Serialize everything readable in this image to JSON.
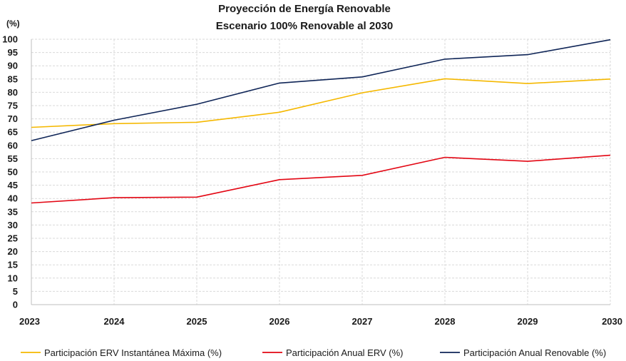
{
  "chart_data": {
    "type": "line",
    "title": "Proyección de Energía Renovable",
    "subtitle": "Escenario 100% Renovable al 2030",
    "ylabel": "(%)",
    "xlabel": "",
    "ylim": [
      0,
      100
    ],
    "yticks": [
      0,
      5,
      10,
      15,
      20,
      25,
      30,
      35,
      40,
      45,
      50,
      55,
      60,
      65,
      70,
      75,
      80,
      85,
      90,
      95,
      100
    ],
    "categories": [
      "2023",
      "2024",
      "2025",
      "2026",
      "2027",
      "2028",
      "2029",
      "2030"
    ],
    "grid": true,
    "legend_position": "bottom",
    "series": [
      {
        "name": "Participación ERV Instantánea Máxima (%)",
        "color": "#f5b800",
        "values": [
          66.8,
          68.2,
          68.7,
          72.5,
          79.8,
          85.1,
          83.3,
          85.0
        ]
      },
      {
        "name": "Participación Anual ERV (%)",
        "color": "#e30613",
        "values": [
          38.3,
          40.3,
          40.5,
          47.1,
          48.7,
          55.5,
          54.0,
          56.3
        ]
      },
      {
        "name": "Participación Anual Renovable (%)",
        "color": "#0f2557",
        "values": [
          61.8,
          69.5,
          75.5,
          83.5,
          85.8,
          92.5,
          94.2,
          99.8
        ]
      }
    ]
  }
}
